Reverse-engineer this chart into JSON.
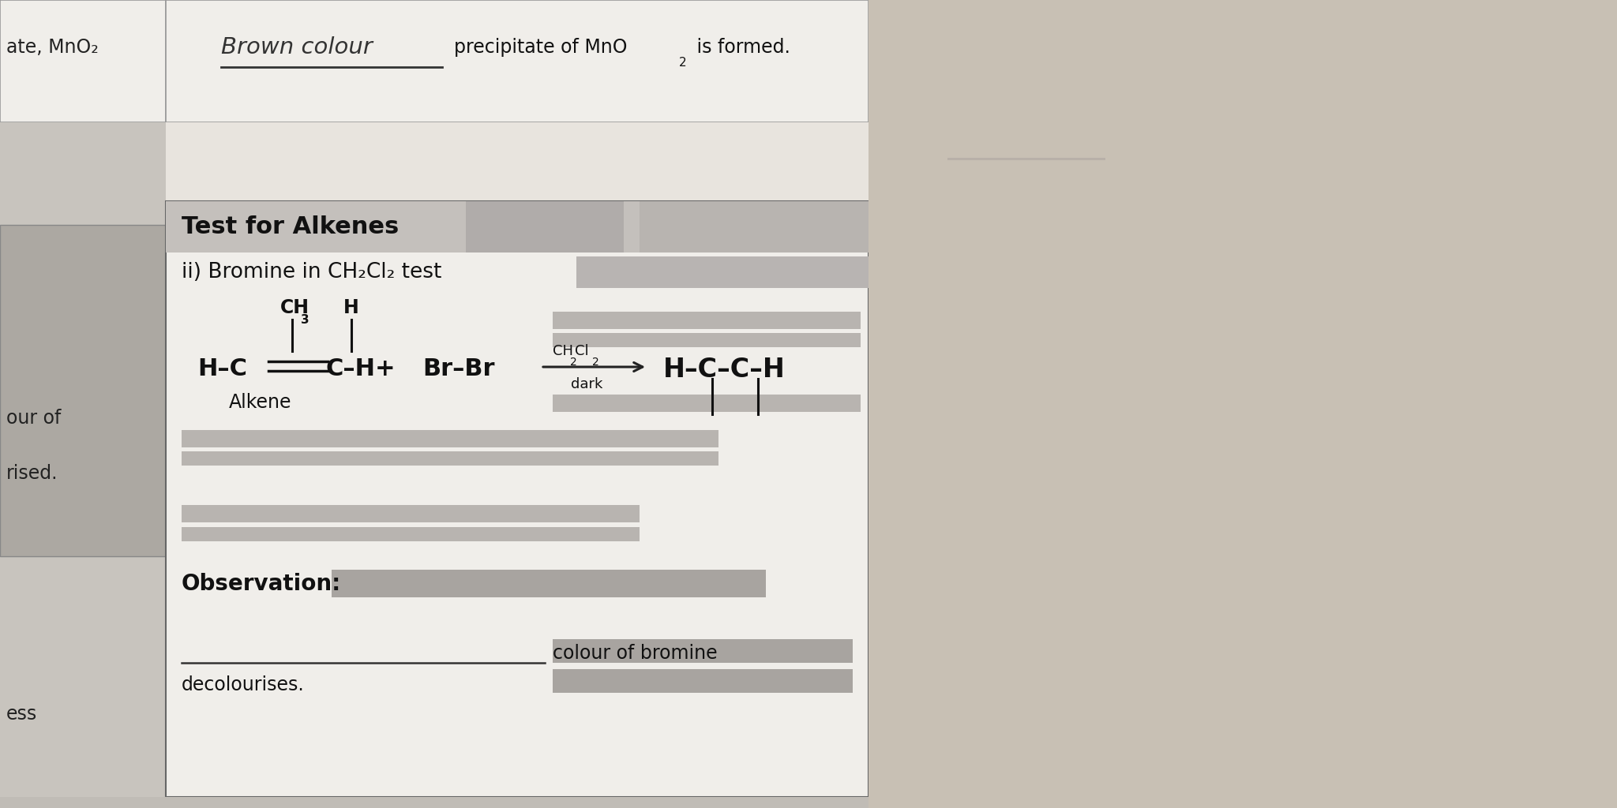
{
  "bg_color": "#c8c4be",
  "page_bg": "#f0eeea",
  "top_panel_bg": "#f2f0ec",
  "main_panel_bg": "#eeece8",
  "header_bar_color": "#c0bcb8",
  "gray_redact_color": "#b8b4b0",
  "dark_gray_redact": "#a8a4a0",
  "left_strip_color": "#c0bcb6",
  "bottle_area_color": "#b8b2aa",
  "wall_color": "#c4beb8",
  "left_top_label": "ate, MnO₂",
  "handwritten_text": "Brown colour",
  "precipitate_text": "precipitate of MnO",
  "is_formed_text": "is formed.",
  "section_title": "Test for Alkenes",
  "subsection": "ii) Bromine in CH₂Cl₂ test",
  "alkene_label": "Alkene",
  "condition_top": "CH₂Cl₂",
  "condition_bottom": "dark",
  "observation_label": "Observation:",
  "line_fill_text": "colour of bromine",
  "decolourises": "decolourises.",
  "left_labels": [
    "our of",
    "rised.",
    "ess"
  ],
  "font_size_large": 22,
  "font_size_med": 19,
  "font_size_body": 17,
  "font_size_small": 13,
  "font_size_sub": 10
}
